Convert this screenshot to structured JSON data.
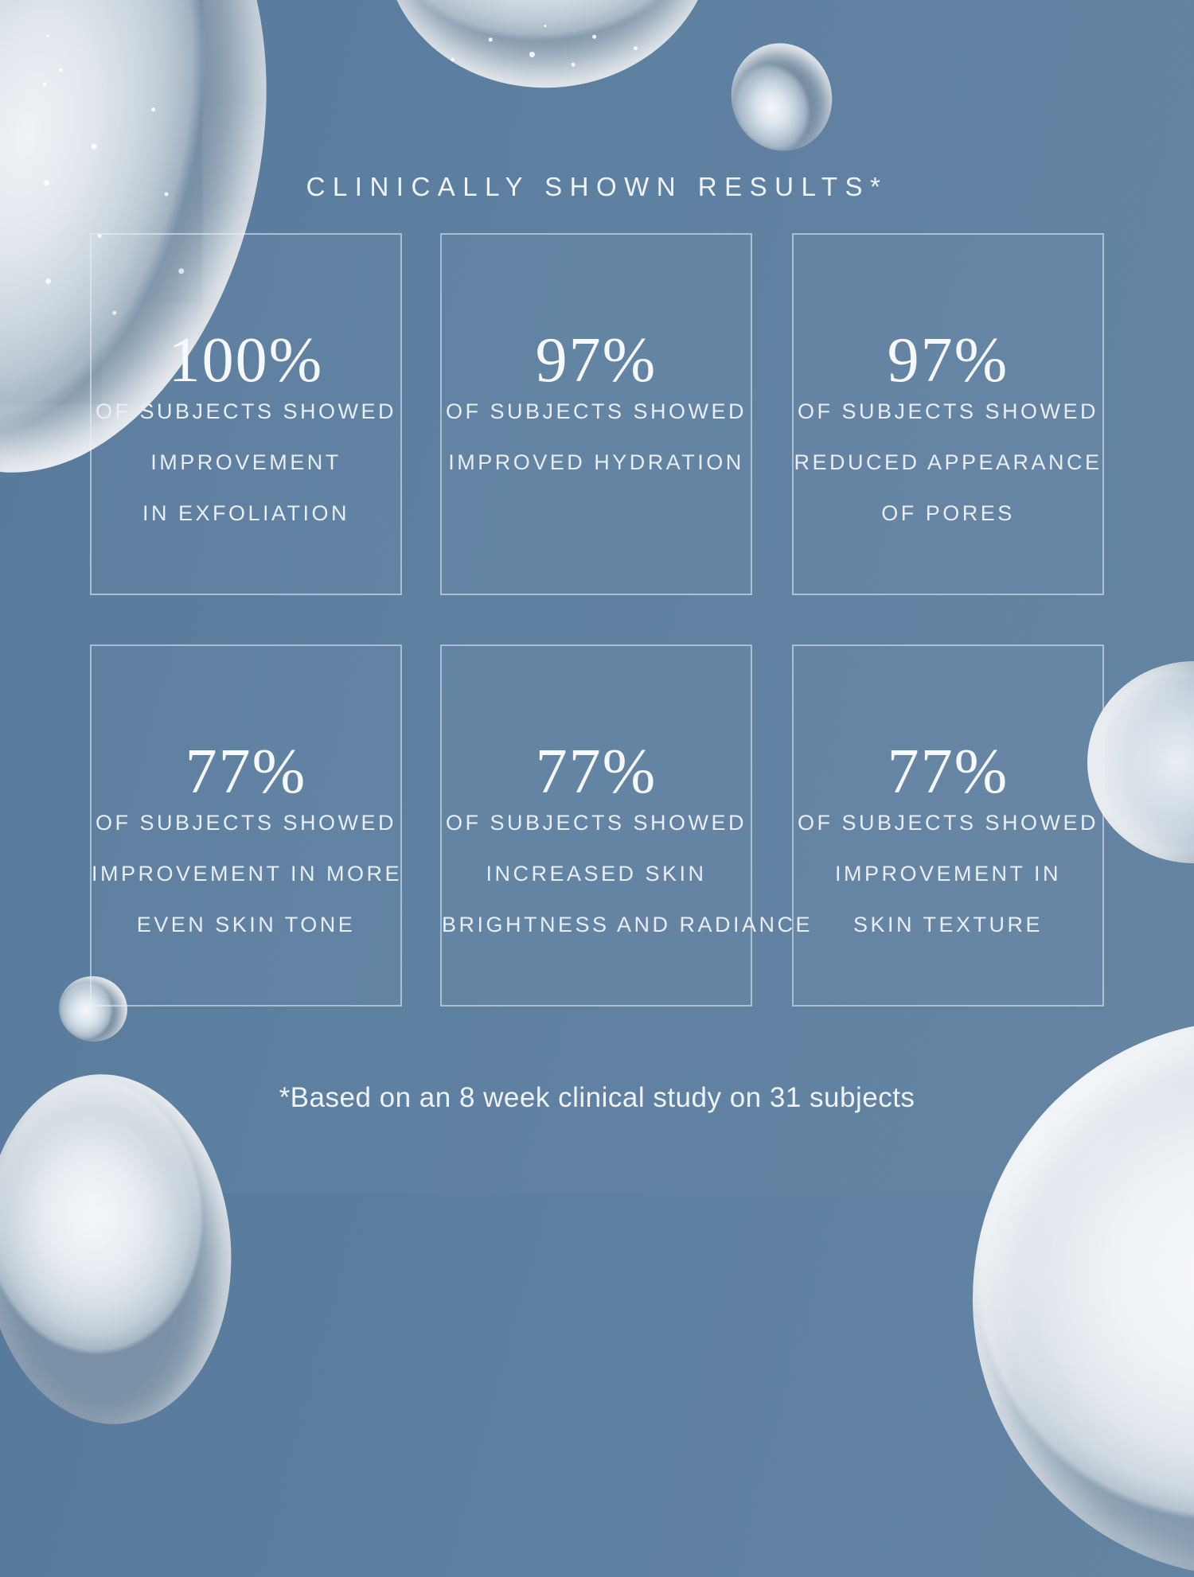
{
  "colors": {
    "background": "#5e80a1",
    "text": "#eef3f7",
    "box_border": "rgba(233,241,248,0.55)"
  },
  "title": "CLINICALLY SHOWN RESULTS*",
  "stats": [
    {
      "value": "100%",
      "lines": [
        "OF SUBJECTS SHOWED",
        "IMPROVEMENT",
        "IN EXFOLIATION"
      ]
    },
    {
      "value": "97%",
      "lines": [
        "OF SUBJECTS SHOWED",
        "IMPROVED HYDRATION"
      ]
    },
    {
      "value": "97%",
      "lines": [
        "OF SUBJECTS SHOWED",
        "REDUCED APPEARANCE",
        "OF PORES"
      ]
    },
    {
      "value": "77%",
      "lines": [
        "OF SUBJECTS SHOWED",
        "IMPROVEMENT IN MORE",
        "EVEN SKIN TONE"
      ]
    },
    {
      "value": "77%",
      "lines": [
        "OF SUBJECTS SHOWED",
        "INCREASED SKIN",
        "BRIGHTNESS AND RADIANCE"
      ]
    },
    {
      "value": "77%",
      "lines": [
        "OF SUBJECTS SHOWED",
        "IMPROVEMENT IN",
        "SKIN TEXTURE"
      ]
    }
  ],
  "footnote": "*Based on an 8 week clinical study on 31 subjects"
}
